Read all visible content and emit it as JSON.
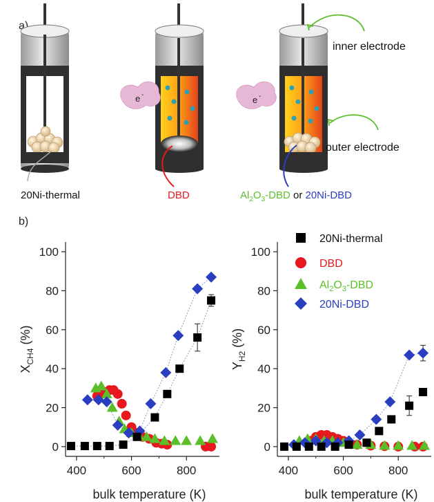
{
  "panel_a": {
    "label": "a)",
    "electron_label": "e",
    "electron_sup": "-",
    "inner_electrode": "inner electrode",
    "outer_electrode": "outer electrode",
    "reactor_labels": {
      "thermal": "20Ni-thermal",
      "dbd": "DBD",
      "alumina_part1": "Al",
      "alumina_sub1": "2",
      "alumina_part2": "O",
      "alumina_sub2": "3",
      "alumina_part3": "-DBD",
      "or_text": " or ",
      "ni_dbd": "20Ni-DBD"
    }
  },
  "panel_b": {
    "label": "b)"
  },
  "legend": {
    "items": [
      {
        "label": "20Ni-thermal",
        "color": "#000000",
        "marker": "square"
      },
      {
        "label": "DBD",
        "color": "#e8191e",
        "marker": "circle"
      },
      {
        "label_part1": "Al",
        "label_sub1": "2",
        "label_part2": "O",
        "label_sub2": "3",
        "label_part3": "-DBD",
        "color": "#5cbf2a",
        "marker": "triangle"
      },
      {
        "label": "20Ni-DBD",
        "color": "#2a3ec0",
        "marker": "diamond"
      }
    ]
  },
  "colors": {
    "thermal": "#000000",
    "dbd": "#e8191e",
    "alumina": "#5cbf2a",
    "ni_dbd": "#2a3ec0",
    "fit_line": "#8a96c8"
  },
  "chart_data": [
    {
      "type": "scatter",
      "xlabel": "bulk temperature (K)",
      "ylabel_main": "X",
      "ylabel_sub": "CH4",
      "ylabel_unit": " (%)",
      "xlim": [
        360,
        920
      ],
      "ylim": [
        -5,
        105
      ],
      "xticks": [
        400,
        600,
        800
      ],
      "yticks": [
        0,
        20,
        40,
        60,
        80,
        100
      ],
      "series": [
        {
          "name": "20Ni-thermal",
          "marker": "square",
          "x": [
            380,
            430,
            475,
            520,
            570,
            620,
            685,
            730,
            775,
            840,
            890
          ],
          "y": [
            0.3,
            0.3,
            0.3,
            0.3,
            1,
            5,
            15,
            27,
            40,
            56,
            75
          ],
          "err": [
            0,
            0,
            0,
            0,
            0,
            0,
            0,
            0,
            0,
            7,
            3
          ]
        },
        {
          "name": "DBD",
          "marker": "circle",
          "x": [
            475,
            490,
            505,
            520,
            535,
            550,
            565,
            580,
            600,
            620,
            640,
            665,
            690,
            710,
            730,
            870,
            890
          ],
          "y": [
            26,
            27,
            28,
            29,
            29,
            27,
            22,
            16,
            10,
            7,
            5,
            4,
            2,
            1.5,
            1,
            0,
            0
          ],
          "err": []
        },
        {
          "name": "Al2O3-DBD",
          "marker": "triangle",
          "x": [
            470,
            490,
            510,
            530,
            555,
            575,
            600,
            625,
            655,
            685,
            720,
            760,
            800,
            850,
            895
          ],
          "y": [
            30,
            31,
            27,
            20,
            13,
            9,
            7,
            6,
            5,
            4,
            3,
            3,
            3,
            3,
            4
          ],
          "err": []
        },
        {
          "name": "20Ni-DBD",
          "marker": "diamond",
          "x": [
            440,
            480,
            510,
            550,
            590,
            630,
            670,
            725,
            770,
            840,
            890
          ],
          "y": [
            24,
            24,
            23,
            11,
            7,
            8,
            22,
            38,
            57,
            81,
            87
          ],
          "err": []
        }
      ],
      "fit_lines": [
        "20Ni-thermal",
        "20Ni-DBD"
      ]
    },
    {
      "type": "scatter",
      "xlabel": "bulk temperature (K)",
      "ylabel_main": "Y",
      "ylabel_sub": "H2",
      "ylabel_unit": " (%)",
      "xlim": [
        360,
        920
      ],
      "ylim": [
        -5,
        105
      ],
      "xticks": [
        400,
        600,
        800
      ],
      "yticks": [
        0,
        20,
        40,
        60,
        80,
        100
      ],
      "series": [
        {
          "name": "20Ni-thermal",
          "marker": "square",
          "x": [
            385,
            430,
            475,
            520,
            570,
            620,
            685,
            730,
            775,
            840,
            890
          ],
          "y": [
            0,
            0,
            0,
            0,
            0,
            1,
            2,
            8,
            14,
            21,
            28
          ],
          "err": [
            0,
            0,
            0,
            0,
            0,
            0,
            0,
            0,
            0,
            5,
            0
          ]
        },
        {
          "name": "DBD",
          "marker": "circle",
          "x": [
            480,
            500,
            520,
            540,
            560,
            580,
            600,
            620,
            650,
            700,
            750,
            800,
            860,
            890
          ],
          "y": [
            3,
            5,
            6,
            6,
            5,
            4,
            3,
            2,
            1,
            0.5,
            0.2,
            0,
            0,
            0
          ],
          "err": []
        },
        {
          "name": "Al2O3-DBD",
          "marker": "triangle",
          "x": [
            440,
            470,
            500,
            530,
            560,
            600,
            650,
            700,
            750,
            800,
            850,
            895
          ],
          "y": [
            3,
            4,
            4,
            3,
            3,
            2,
            1,
            1,
            0.5,
            0.5,
            0.5,
            0.5
          ],
          "err": []
        },
        {
          "name": "20Ni-DBD",
          "marker": "diamond",
          "x": [
            420,
            460,
            500,
            540,
            580,
            620,
            660,
            720,
            770,
            840,
            890
          ],
          "y": [
            1,
            2,
            3,
            2,
            2,
            3,
            6,
            14,
            23,
            47,
            48
          ],
          "err": [
            0,
            0,
            0,
            0,
            0,
            0,
            0,
            0,
            0,
            0,
            4
          ]
        }
      ],
      "fit_lines": [
        "20Ni-DBD"
      ]
    }
  ]
}
